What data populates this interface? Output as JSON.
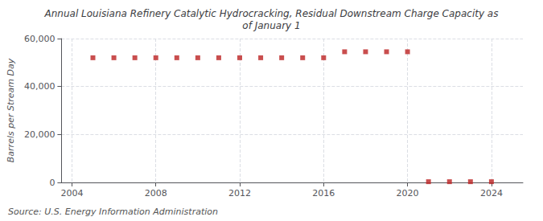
{
  "chart_data": {
    "type": "scatter",
    "title": "Annual Louisiana Refinery Catalytic Hydrocracking, Residual Downstream Charge Capacity as\nof January 1",
    "ylabel": "Barrels per Stream Day",
    "annotations": [
      "Source: U.S. Energy Information Administration"
    ],
    "x": [
      2005,
      2006,
      2007,
      2008,
      2009,
      2010,
      2011,
      2012,
      2013,
      2014,
      2015,
      2016,
      2017,
      2018,
      2019,
      2020,
      2021,
      2022,
      2023,
      2024
    ],
    "values": [
      52000,
      52000,
      52000,
      52000,
      52000,
      52000,
      52000,
      52000,
      52000,
      52000,
      52000,
      52000,
      54500,
      54500,
      54500,
      54500,
      300,
      300,
      300,
      300
    ],
    "color": "#bb2222",
    "marker": "square",
    "xlim": [
      2003.5,
      2025.5
    ],
    "xticks": [
      2004,
      2008,
      2012,
      2016,
      2020,
      2024
    ],
    "ylim": [
      0,
      60000
    ],
    "yticks": [
      0,
      {
        "value": 20000,
        "label": "20,000"
      },
      {
        "value": 40000,
        "label": "40,000"
      },
      {
        "value": 60000,
        "label": "60,000"
      }
    ],
    "grid": true
  }
}
